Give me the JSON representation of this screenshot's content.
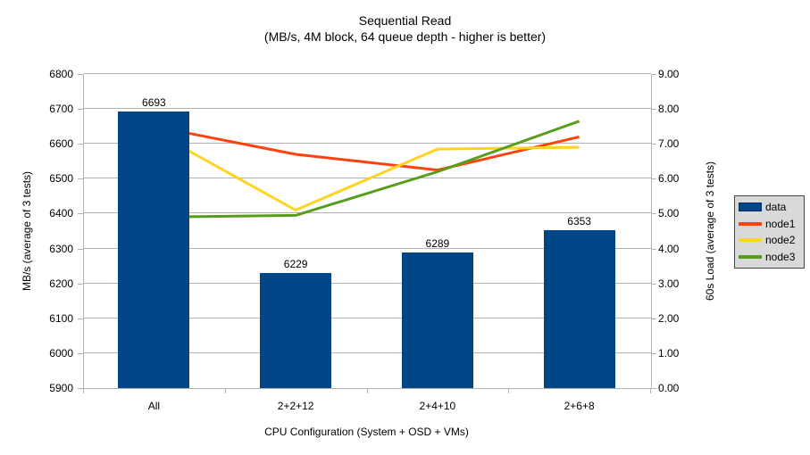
{
  "title": {
    "line1": "Sequential Read",
    "line2": "(MB/s, 4M block, 64 queue depth - higher is better)"
  },
  "chart_data": {
    "type": "bar+line",
    "categories": [
      "All",
      "2+2+12",
      "2+4+10",
      "2+6+8"
    ],
    "bar_series": {
      "name": "data",
      "axis": "left",
      "values": [
        6693,
        6229,
        6289,
        6353
      ],
      "value_labels": [
        "6693",
        "6229",
        "6289",
        "6353"
      ],
      "color": "#004586"
    },
    "line_series": [
      {
        "name": "node1",
        "axis": "right",
        "values": [
          7.5,
          6.7,
          6.25,
          7.2
        ],
        "color": "#ff420e"
      },
      {
        "name": "node2",
        "axis": "right",
        "values": [
          7.35,
          5.1,
          6.85,
          6.9
        ],
        "color": "#ffd320"
      },
      {
        "name": "node3",
        "axis": "right",
        "values": [
          4.9,
          4.95,
          6.2,
          7.65
        ],
        "color": "#579d1c"
      }
    ],
    "left_axis": {
      "label": "MB/s (average of 3 tests)",
      "min": 5900,
      "max": 6800,
      "step": 100
    },
    "right_axis": {
      "label": "60s Load (average of 3 tests)",
      "min": 0,
      "max": 9,
      "step": 1,
      "decimals": 2
    },
    "x_axis": {
      "label": "CPU Configuration (System + OSD + VMs)"
    },
    "legend": {
      "position": "right",
      "items": [
        "data",
        "node1",
        "node2",
        "node3"
      ]
    },
    "grid": true,
    "colors": {
      "gridline": "#b3b3b3",
      "axis_line": "#b3b3b3",
      "text": "#000000",
      "legend_bg": "#d9d9d9"
    }
  }
}
